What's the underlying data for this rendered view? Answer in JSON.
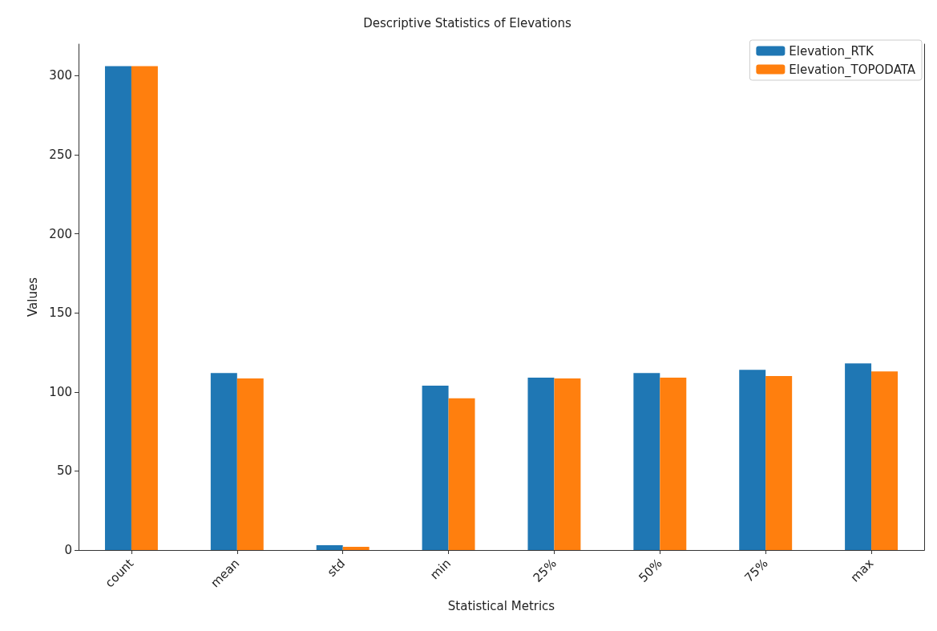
{
  "chart_data": {
    "type": "bar",
    "title": "Descriptive Statistics of Elevations",
    "xlabel": "Statistical Metrics",
    "ylabel": "Values",
    "categories": [
      "count",
      "mean",
      "std",
      "min",
      "25%",
      "50%",
      "75%",
      "max"
    ],
    "series": [
      {
        "name": "Elevation_RTK",
        "color": "#1f77b4",
        "values": [
          306,
          112,
          3,
          104,
          109,
          112,
          114,
          118
        ]
      },
      {
        "name": "Elevation_TOPODATA",
        "color": "#ff7f0e",
        "values": [
          306,
          108.5,
          2,
          96,
          108.5,
          109,
          110,
          113
        ]
      }
    ],
    "ylim": [
      0,
      320
    ],
    "yticks": [
      0,
      50,
      100,
      150,
      200,
      250,
      300
    ],
    "grid": false,
    "legend": "top right"
  }
}
